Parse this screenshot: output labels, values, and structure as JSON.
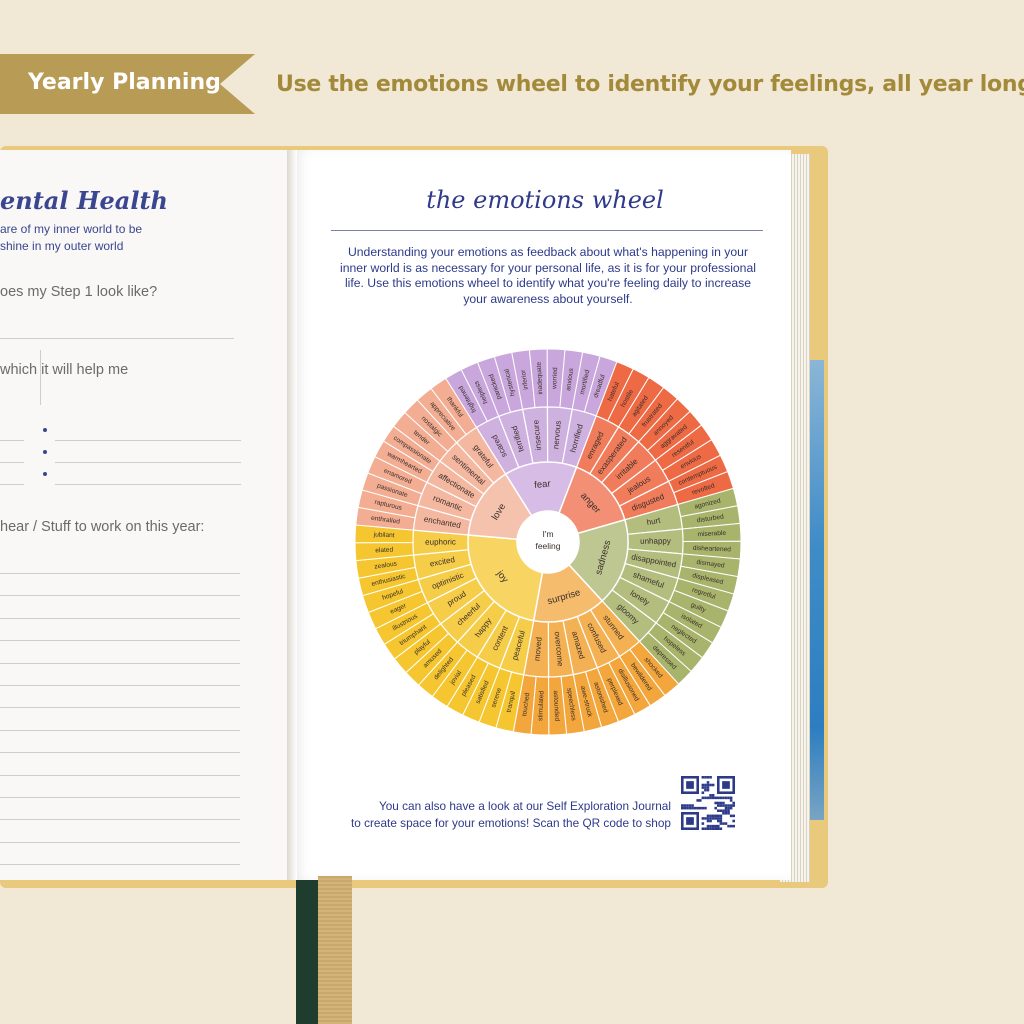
{
  "banner": {
    "label": "Yearly Planning",
    "color": "#b89b55"
  },
  "tagline": "Use the emotions wheel to identify your feelings, all year long!",
  "left_page": {
    "title": "ental Health",
    "subtitle_line1": "are of my inner world to be",
    "subtitle_line2": "shine in my outer world",
    "q1": "oes my Step 1 look like?",
    "q2": "which it will help me",
    "q3": "hear / Stuff to  work on this year:"
  },
  "right_page": {
    "title": "the emotions wheel",
    "intro": "Understanding your emotions as feedback about what's happening in your inner world is as necessary for your personal life, as it is for your professional life. Use this emotions wheel to identify what you're feeling daily to increase your awareness about yourself.",
    "footer_line1": "You can also have a look at our Self Exploration Journal",
    "footer_line2": "to create space for your emotions! Scan the QR code to shop",
    "qr_icon": "qr-code-icon"
  },
  "wheel": {
    "center_line1": "I'm",
    "center_line2": "feeling",
    "segments": [
      {
        "core": "fear",
        "color": "#c9a6dc",
        "mid": [
          "scared",
          "terrified",
          "insecure",
          "nervous",
          "horrified"
        ],
        "outer": [
          "frightened",
          "helpless",
          "panicked",
          "hysterical",
          "inferior",
          "inadequate",
          "worried",
          "anxious",
          "mortified",
          "dreadful"
        ]
      },
      {
        "core": "anger",
        "color": "#ee6a45",
        "mid": [
          "enraged",
          "exasperated",
          "irritable",
          "jealous",
          "disgusted"
        ],
        "outer": [
          "hateful",
          "hostile",
          "agitated",
          "frustrated",
          "annoyed",
          "aggravated",
          "resentful",
          "envious",
          "contemptuous",
          "revolted"
        ]
      },
      {
        "core": "sadness",
        "color": "#a8b46c",
        "mid": [
          "hurt",
          "unhappy",
          "disappointed",
          "shameful",
          "lonely",
          "gloomy"
        ],
        "outer": [
          "agonized",
          "disturbed",
          "miserable",
          "disheartened",
          "dismayed",
          "displeased",
          "regretful",
          "guilty",
          "isolated",
          "neglected",
          "hopeless",
          "depressed"
        ]
      },
      {
        "core": "surprise",
        "color": "#f2a63c",
        "mid": [
          "stunned",
          "confused",
          "amazed",
          "overcome",
          "moved"
        ],
        "outer": [
          "shocked",
          "bewildered",
          "disillusioned",
          "perplexed",
          "astonished",
          "awe-struck",
          "speechless",
          "astounded",
          "stimulated",
          "touched"
        ]
      },
      {
        "core": "joy",
        "color": "#f5c62f",
        "mid": [
          "peaceful",
          "content",
          "happy",
          "cheerful",
          "proud",
          "optimistic",
          "excited",
          "euphoric"
        ],
        "outer": [
          "tranquil",
          "serene",
          "satisfied",
          "pleased",
          "jovial",
          "delighted",
          "amused",
          "playful",
          "triumphant",
          "illustrious",
          "eager",
          "hopeful",
          "enthusiastic",
          "zealous",
          "elated",
          "jubilant"
        ]
      },
      {
        "core": "love",
        "color": "#f2ad93",
        "mid": [
          "enchanted",
          "romantic",
          "affectionate",
          "sentimental",
          "grateful"
        ],
        "outer": [
          "enthralled",
          "rapturous",
          "passionate",
          "enamored",
          "warmhearted",
          "compassionate",
          "tender",
          "nostalgic",
          "appreciative",
          "thankful"
        ]
      }
    ]
  }
}
